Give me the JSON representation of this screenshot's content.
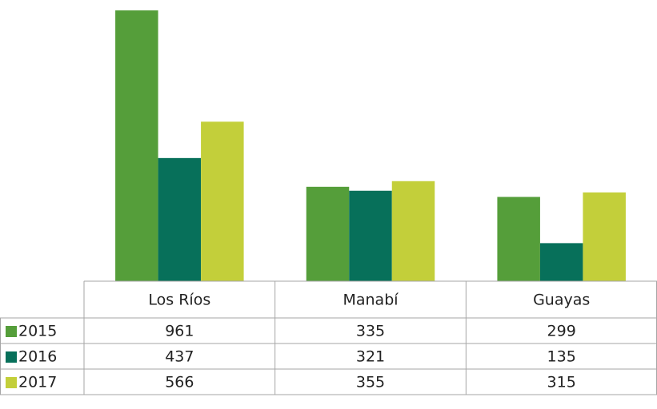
{
  "chart_data": {
    "type": "bar",
    "categories": [
      "Los Ríos",
      "Manabí",
      "Guayas"
    ],
    "series": [
      {
        "name": "2015",
        "color": "#559e3a",
        "values": [
          961,
          335,
          299
        ]
      },
      {
        "name": "2016",
        "color": "#07705a",
        "values": [
          437,
          321,
          135
        ]
      },
      {
        "name": "2017",
        "color": "#c3cf3a",
        "values": [
          566,
          355,
          315
        ]
      }
    ]
  }
}
